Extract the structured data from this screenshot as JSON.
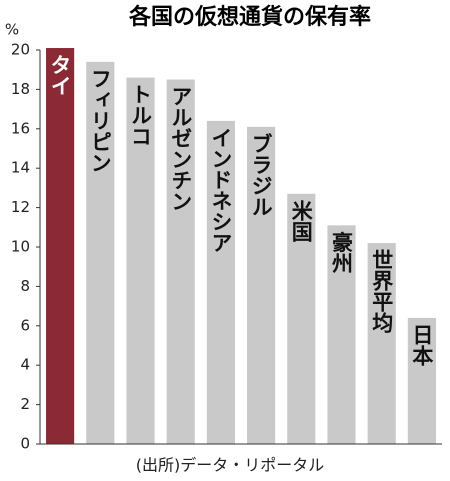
{
  "chart_data": {
    "type": "bar",
    "title": "各国の仮想通貨の保有率",
    "y_unit": "%",
    "source": "(出所)データ・リポータル",
    "categories": [
      "タイ",
      "フィリピン",
      "トルコ",
      "アルゼンチン",
      "インドネシア",
      "ブラジル",
      "米国",
      "豪州",
      "世界平均",
      "日本"
    ],
    "values": [
      20.1,
      19.4,
      18.6,
      18.5,
      16.4,
      16.1,
      12.7,
      11.1,
      10.2,
      6.4
    ],
    "colors": [
      "#8b2a35",
      "#c9c9c9",
      "#c9c9c9",
      "#c9c9c9",
      "#c9c9c9",
      "#c9c9c9",
      "#c9c9c9",
      "#c9c9c9",
      "#c9c9c9",
      "#c9c9c9"
    ],
    "label_colors": [
      "#ffffff",
      "#111111",
      "#111111",
      "#111111",
      "#111111",
      "#111111",
      "#111111",
      "#111111",
      "#111111",
      "#111111"
    ],
    "ylim": [
      0,
      20
    ],
    "yticks": [
      0,
      2,
      4,
      6,
      8,
      10,
      12,
      14,
      16,
      18,
      20
    ]
  }
}
